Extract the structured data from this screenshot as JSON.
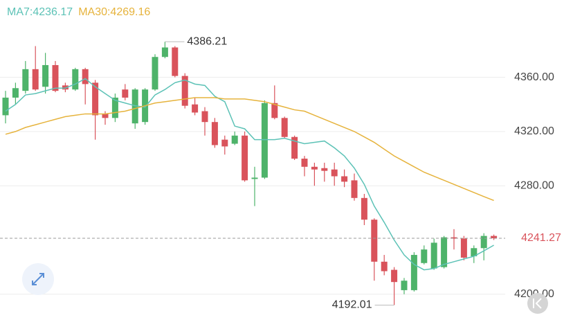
{
  "chart_data": {
    "type": "candlestick",
    "ylim": [
      4181,
      4417
    ],
    "yticks": [
      {
        "value": 4200,
        "label": "4200.00"
      },
      {
        "value": 4280,
        "label": "4280.00"
      },
      {
        "value": 4320,
        "label": "4320.00"
      },
      {
        "value": 4360,
        "label": "4360.00"
      }
    ],
    "grid": true,
    "up_color": "#4eb36a",
    "down_color": "#d9535b",
    "open": [
      4332,
      4345,
      4350,
      4366,
      4353,
      4369,
      4354,
      4351,
      4366,
      4356,
      4333,
      4330,
      4351,
      4326,
      4327,
      4351,
      4375,
      4382,
      4361,
      4340,
      4335,
      4327,
      4314,
      4311,
      4317,
      4285,
      4286,
      4341,
      4330,
      4316,
      4300,
      4294,
      4293,
      4292,
      4287,
      4284,
      4271,
      4255,
      4224,
      4218,
      4203,
      4203,
      4223,
      4219,
      4220,
      4242,
      4241,
      4228,
      4234,
      4243
    ],
    "high": [
      4350,
      4356,
      4372,
      4383,
      4378,
      4372,
      4356,
      4367,
      4367,
      4358,
      4335,
      4348,
      4355,
      4352,
      4352,
      4377,
      4386.21,
      4383,
      4363,
      4345,
      4338,
      4330,
      4317,
      4320,
      4320,
      4294,
      4343,
      4354,
      4331,
      4317,
      4302,
      4297,
      4297,
      4297,
      4292,
      4289,
      4274,
      4256,
      4229,
      4220,
      4212,
      4231,
      4236,
      4241,
      4243,
      4248,
      4243,
      4236,
      4245,
      4244
    ],
    "low": [
      4326,
      4340,
      4348,
      4350,
      4348,
      4349,
      4349,
      4350,
      4340,
      4314,
      4325,
      4327,
      4343,
      4322,
      4325,
      4350,
      4374,
      4360,
      4337,
      4332,
      4317,
      4308,
      4303,
      4310,
      4283,
      4265,
      4285,
      4329,
      4315,
      4299,
      4287,
      4280,
      4283,
      4280,
      4279,
      4269,
      4251,
      4210,
      4214,
      4192.01,
      4200,
      4202,
      4222,
      4218,
      4219,
      4233,
      4225,
      4223,
      4225,
      4240
    ],
    "close": [
      4345,
      4352,
      4366,
      4351,
      4369,
      4350,
      4351,
      4366,
      4355,
      4332,
      4330,
      4345,
      4345,
      4351,
      4351,
      4375,
      4382,
      4361,
      4339,
      4334,
      4327,
      4310,
      4309,
      4317,
      4284,
      4286,
      4341,
      4330,
      4316,
      4300,
      4294,
      4292,
      4291,
      4287,
      4283,
      4271,
      4255,
      4224,
      4217,
      4209,
      4210,
      4229,
      4233,
      4238,
      4242,
      4241,
      4227,
      4234,
      4243,
      4241.27
    ],
    "series": [
      {
        "name": "MA7:4236.17",
        "color": "#5cc2b6",
        "values": [
          4335,
          4340,
          4347,
          4348,
          4350,
          4352,
          4352,
          4355,
          4359,
          4353,
          4348,
          4343,
          4341,
          4339,
          4338,
          4347,
          4351,
          4356,
          4358,
          4355,
          4354,
          4346,
          4342,
          4324,
          4322,
          4314,
          4314,
          4314,
          4315,
          4313,
          4311,
          4312,
          4313,
          4308,
          4302,
          4293,
          4281,
          4265,
          4253,
          4240,
          4229,
          4222,
          4218,
          4219,
          4222,
          4224,
          4226,
          4228,
          4232,
          4236.17
        ]
      },
      {
        "name": "MA30:4269.16",
        "color": "#e6b33c",
        "values": [
          4318,
          4320,
          4323,
          4325,
          4327,
          4329,
          4331,
          4332,
          4333,
          4333,
          4333,
          4334,
          4335,
          4337,
          4339,
          4341,
          4342,
          4343,
          4344,
          4345,
          4345,
          4345,
          4344,
          4344,
          4344,
          4343,
          4342,
          4340,
          4338,
          4336,
          4335,
          4332,
          4329,
          4326,
          4323,
          4320,
          4316,
          4312,
          4307,
          4302,
          4298,
          4294,
          4290,
          4287,
          4284,
          4281,
          4278,
          4275,
          4272,
          4269.16
        ]
      }
    ],
    "max_label": 4386.21,
    "min_label": 4192.01,
    "last_price": 4241.27
  }
}
